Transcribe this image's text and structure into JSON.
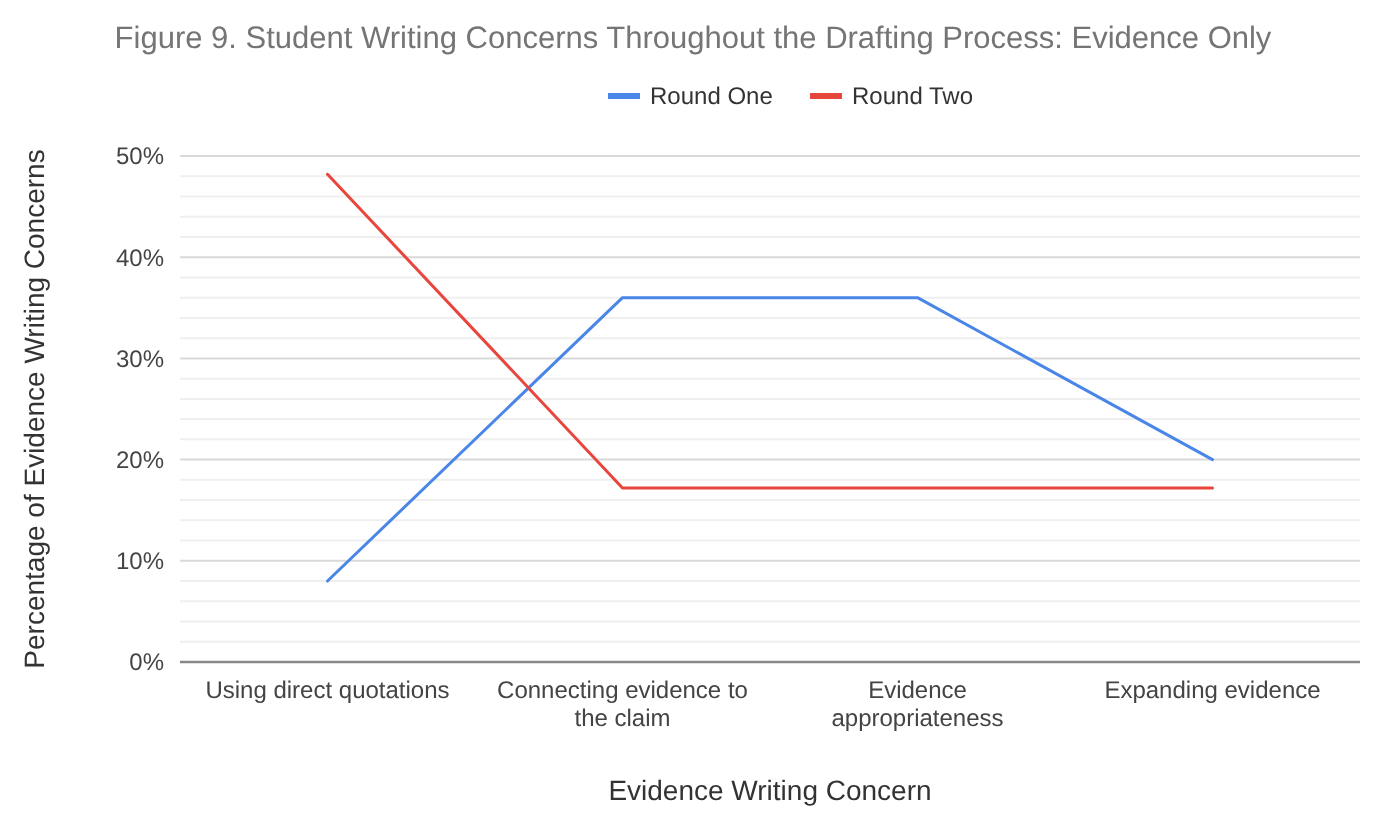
{
  "chart_data": {
    "type": "line",
    "title": "Figure 9. Student Writing Concerns Throughout the Drafting Process: Evidence Only",
    "xlabel": "Evidence Writing Concern",
    "ylabel": "Percentage of Evidence Writing Concerns",
    "categories": [
      "Using direct quotations",
      "Connecting evidence to the claim",
      "Evidence appropriateness",
      "Expanding evidence"
    ],
    "series": [
      {
        "name": "Round One",
        "color": "#4a86e8",
        "values": [
          8,
          36,
          36,
          20
        ]
      },
      {
        "name": "Round Two",
        "color": "#e8453c",
        "values": [
          48.2,
          17.2,
          17.2,
          17.2
        ]
      }
    ],
    "ylim": [
      0,
      50
    ],
    "yticks": [
      {
        "value": 0,
        "label": "0%"
      },
      {
        "value": 2,
        "label": null
      },
      {
        "value": 4,
        "label": null
      },
      {
        "value": 6,
        "label": null
      },
      {
        "value": 8,
        "label": null
      },
      {
        "value": 10,
        "label": "10%"
      },
      {
        "value": 12,
        "label": null
      },
      {
        "value": 14,
        "label": null
      },
      {
        "value": 16,
        "label": null
      },
      {
        "value": 18,
        "label": null
      },
      {
        "value": 20,
        "label": "20%"
      },
      {
        "value": 22,
        "label": null
      },
      {
        "value": 24,
        "label": null
      },
      {
        "value": 26,
        "label": null
      },
      {
        "value": 28,
        "label": null
      },
      {
        "value": 30,
        "label": "30%"
      },
      {
        "value": 32,
        "label": null
      },
      {
        "value": 34,
        "label": null
      },
      {
        "value": 36,
        "label": null
      },
      {
        "value": 38,
        "label": null
      },
      {
        "value": 40,
        "label": "40%"
      },
      {
        "value": 42,
        "label": null
      },
      {
        "value": 44,
        "label": null
      },
      {
        "value": 46,
        "label": null
      },
      {
        "value": 48,
        "label": null
      },
      {
        "value": 50,
        "label": "50%"
      }
    ],
    "grid": "y",
    "legend": "top",
    "marker": "none",
    "line_style": "solid"
  }
}
